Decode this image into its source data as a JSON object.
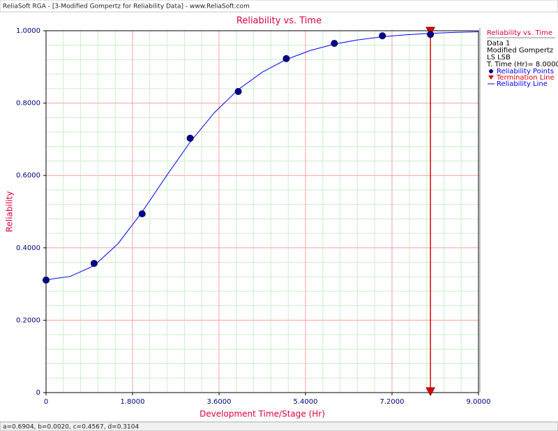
{
  "window": {
    "title": "ReliaSoft RGA - [3-Modified Gompertz for Reliability Data] - www.ReliaSoft.com"
  },
  "status_bar": {
    "text": "a=0.6904, b=0.0020, c=0.4567, d=0.3104"
  },
  "legend_panel": {
    "title": "Reliability vs. Time",
    "lines": [
      "Data 1",
      "Modified Gompertz",
      "LS LSB",
      "T. Time (Hr)= 8.0000"
    ]
  },
  "chart_data": {
    "type": "line",
    "title": "Reliability vs. Time",
    "x_label": "Development Time/Stage (Hr)",
    "y_label": "Reliability",
    "xlim": [
      0,
      9
    ],
    "ylim": [
      0,
      1
    ],
    "xticks": [
      0,
      {
        "value": 1.8,
        "label": "1.8000"
      },
      {
        "value": 3.6,
        "label": "3.6000"
      },
      {
        "value": 5.4,
        "label": "5.4000"
      },
      {
        "value": 7.2,
        "label": "7.2000"
      },
      {
        "value": 9,
        "label": "9.0000"
      }
    ],
    "yticks": [
      0,
      {
        "value": 0.2,
        "label": "0.2000"
      },
      {
        "value": 0.4,
        "label": "0.4000"
      },
      {
        "value": 0.6,
        "label": "0.6000"
      },
      {
        "value": 0.8,
        "label": "0.8000"
      },
      {
        "value": 1,
        "label": "1.0000"
      }
    ],
    "grid": true,
    "minor_grid_divisions": 5,
    "series": [
      {
        "name": "Reliability Points",
        "color": "#00008b",
        "style": "markers",
        "x": [
          0,
          1,
          2,
          3,
          4,
          5,
          6,
          7,
          8
        ],
        "values": [
          0.311,
          0.357,
          0.494,
          0.703,
          0.832,
          0.923,
          0.965,
          0.986,
          0.99
        ]
      },
      {
        "name": "Termination Line",
        "color": "#e00000",
        "style": "vline",
        "x": [
          8
        ]
      },
      {
        "name": "Reliability Line",
        "color": "#0000ff",
        "style": "line",
        "x": [
          0,
          0.5,
          1,
          1.5,
          2,
          2.5,
          3,
          3.5,
          4,
          4.5,
          5,
          5.5,
          6,
          6.5,
          7,
          7.5,
          8,
          8.5,
          9
        ],
        "values": [
          0.3118,
          0.3208,
          0.3508,
          0.4117,
          0.4992,
          0.5978,
          0.6923,
          0.7732,
          0.8373,
          0.8855,
          0.9206,
          0.9455,
          0.963,
          0.975,
          0.9833,
          0.9889,
          0.9927,
          0.9954,
          0.9971
        ]
      }
    ]
  }
}
